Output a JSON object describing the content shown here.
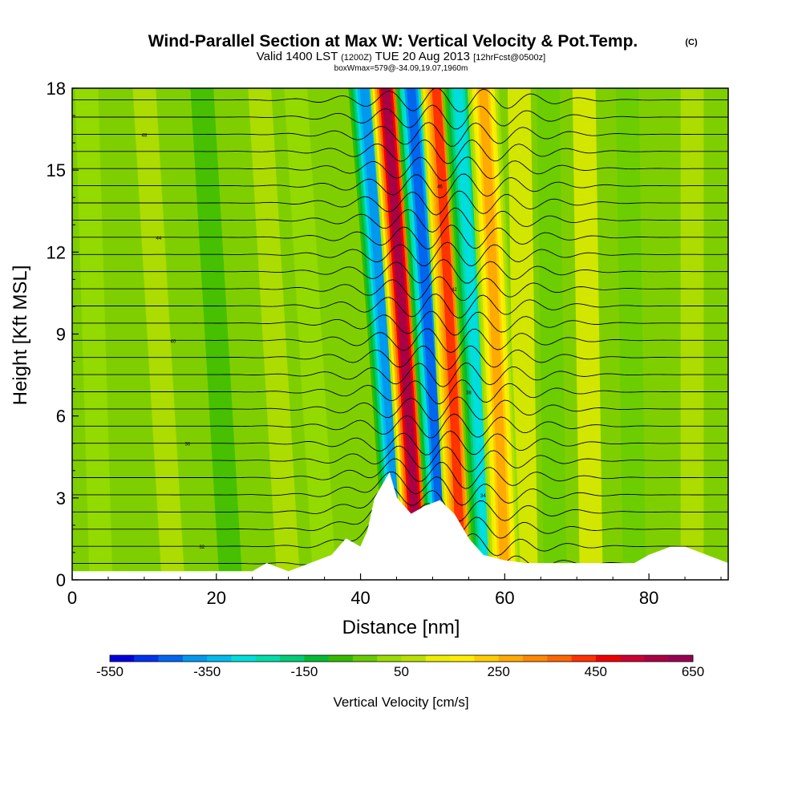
{
  "chart_data": {
    "type": "heatmap",
    "title": "Wind-Parallel Section at Max W: Vertical Velocity & Pot.Temp.",
    "copyright": "(C)",
    "subtitle": {
      "valid": "Valid 1400 LST",
      "zulu": "(1200Z)",
      "date": "TUE 20 Aug 2013",
      "forecast": "[12hrFcst@0500z]"
    },
    "box_info": "boxWmax=579@-34.09,19.07,1960m",
    "xlabel": "Distance [nm]",
    "ylabel": "Height [Kft MSL]",
    "xlim": [
      0,
      91
    ],
    "ylim": [
      0,
      18
    ],
    "xticks": [
      0,
      20,
      40,
      60,
      80
    ],
    "yticks": [
      0,
      3,
      6,
      9,
      12,
      15,
      18
    ],
    "colorbar": {
      "label": "Vertical Velocity [cm/s]",
      "min": -550,
      "max": 650,
      "step": 50,
      "tick_labels": [
        "-550",
        "-350",
        "-150",
        "50",
        "250",
        "450",
        "650"
      ],
      "colors": [
        "#0000dd",
        "#0033ee",
        "#0066ee",
        "#0099ee",
        "#00bbee",
        "#00dddd",
        "#00ddaa",
        "#00cc77",
        "#00bb33",
        "#33bb00",
        "#66cc00",
        "#99dd00",
        "#bbe000",
        "#eeee00",
        "#ffee00",
        "#ffcc00",
        "#ffaa00",
        "#ff8800",
        "#ff6600",
        "#ff3300",
        "#ee0000",
        "#cc0033",
        "#aa0044",
        "#990055"
      ]
    },
    "updraft_bands": [
      {
        "label": "downdraft",
        "x_bottom": 45.5,
        "x_top": 40.5,
        "w": -400
      },
      {
        "label": "updraft",
        "x_bottom": 48.0,
        "x_top": 43.5,
        "w": 550
      },
      {
        "label": "downdraft",
        "x_bottom": 51.5,
        "x_top": 47.0,
        "w": -450
      },
      {
        "label": "updraft",
        "x_bottom": 54.0,
        "x_top": 50.5,
        "w": 400
      },
      {
        "label": "downdraft",
        "x_bottom": 57.5,
        "x_top": 53.5,
        "w": -300
      },
      {
        "label": "updraft",
        "x_bottom": 60.0,
        "x_top": 57.0,
        "w": 250
      }
    ],
    "terrain_kft": [
      [
        0,
        0.3
      ],
      [
        10,
        0.3
      ],
      [
        25,
        0.3
      ],
      [
        27,
        0.6
      ],
      [
        30,
        0.3
      ],
      [
        33,
        0.6
      ],
      [
        36,
        0.9
      ],
      [
        38,
        1.5
      ],
      [
        40,
        1.2
      ],
      [
        41,
        1.8
      ],
      [
        42,
        3.0
      ],
      [
        44,
        3.9
      ],
      [
        45,
        3.0
      ],
      [
        47,
        2.4
      ],
      [
        49,
        2.7
      ],
      [
        51,
        2.9
      ],
      [
        53,
        2.4
      ],
      [
        55,
        1.5
      ],
      [
        56,
        1.2
      ],
      [
        57,
        0.9
      ],
      [
        60,
        0.7
      ],
      [
        63,
        0.6
      ],
      [
        70,
        0.6
      ],
      [
        78,
        0.6
      ],
      [
        80,
        0.9
      ],
      [
        83,
        1.2
      ],
      [
        85,
        1.2
      ],
      [
        88,
        0.9
      ],
      [
        91,
        0.6
      ]
    ],
    "theta_contours": {
      "count": 28,
      "labels": [
        "32",
        "34",
        "36",
        "38",
        "40",
        "42",
        "44",
        "46",
        "48",
        "50"
      ]
    }
  }
}
